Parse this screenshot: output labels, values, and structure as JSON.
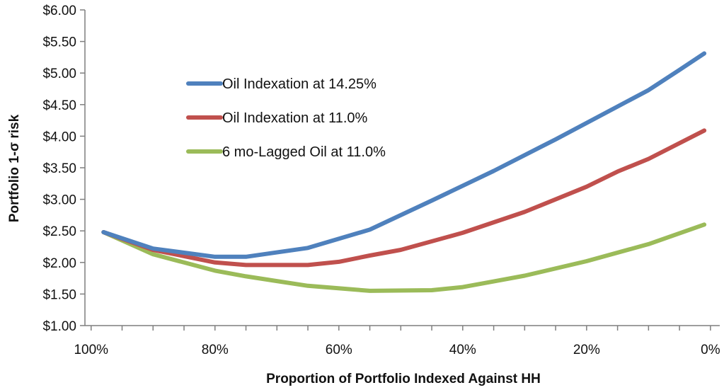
{
  "chart_data": {
    "type": "line",
    "title": "",
    "xlabel": "Proportion of Portfolio Indexed Against HH",
    "ylabel": "Portfolio 1-σ risk",
    "x_tick_labels": [
      "100%",
      "80%",
      "60%",
      "40%",
      "20%",
      "0%"
    ],
    "x_ticks": [
      100,
      80,
      60,
      40,
      20,
      0
    ],
    "xlim": [
      101,
      -1.5
    ],
    "y_tick_labels": [
      "$1.00",
      "$1.50",
      "$2.00",
      "$2.50",
      "$3.00",
      "$3.50",
      "$4.00",
      "$4.50",
      "$5.00",
      "$5.50",
      "$6.00"
    ],
    "y_ticks": [
      1.0,
      1.5,
      2.0,
      2.5,
      3.0,
      3.5,
      4.0,
      4.5,
      5.0,
      5.5,
      6.0
    ],
    "ylim": [
      1.0,
      6.0
    ],
    "grid": false,
    "legend_position": "upper-left-inside",
    "series": [
      {
        "name": "Oil Indexation at 14.25%",
        "color": "#4F81BD",
        "x": [
          98,
          90,
          80,
          75,
          65,
          55,
          45,
          35,
          25,
          15,
          10,
          5,
          1
        ],
        "y": [
          2.48,
          2.22,
          2.09,
          2.09,
          2.23,
          2.52,
          2.98,
          3.45,
          3.95,
          4.47,
          4.73,
          5.05,
          5.31
        ]
      },
      {
        "name": "Oil Indexation at 11.0%",
        "color": "#C0504D",
        "x": [
          98,
          90,
          80,
          75,
          65,
          60,
          55,
          50,
          40,
          30,
          20,
          15,
          10,
          1
        ],
        "y": [
          2.48,
          2.2,
          2.0,
          1.96,
          1.96,
          2.01,
          2.11,
          2.2,
          2.47,
          2.8,
          3.2,
          3.44,
          3.64,
          4.09
        ]
      },
      {
        "name": "6 mo-Lagged Oil at 11.0%",
        "color": "#9BBB59",
        "x": [
          98,
          90,
          80,
          75,
          65,
          55,
          45,
          40,
          35,
          30,
          20,
          10,
          1
        ],
        "y": [
          2.48,
          2.13,
          1.87,
          1.78,
          1.63,
          1.55,
          1.56,
          1.61,
          1.7,
          1.79,
          2.02,
          2.29,
          2.6
        ]
      }
    ]
  }
}
